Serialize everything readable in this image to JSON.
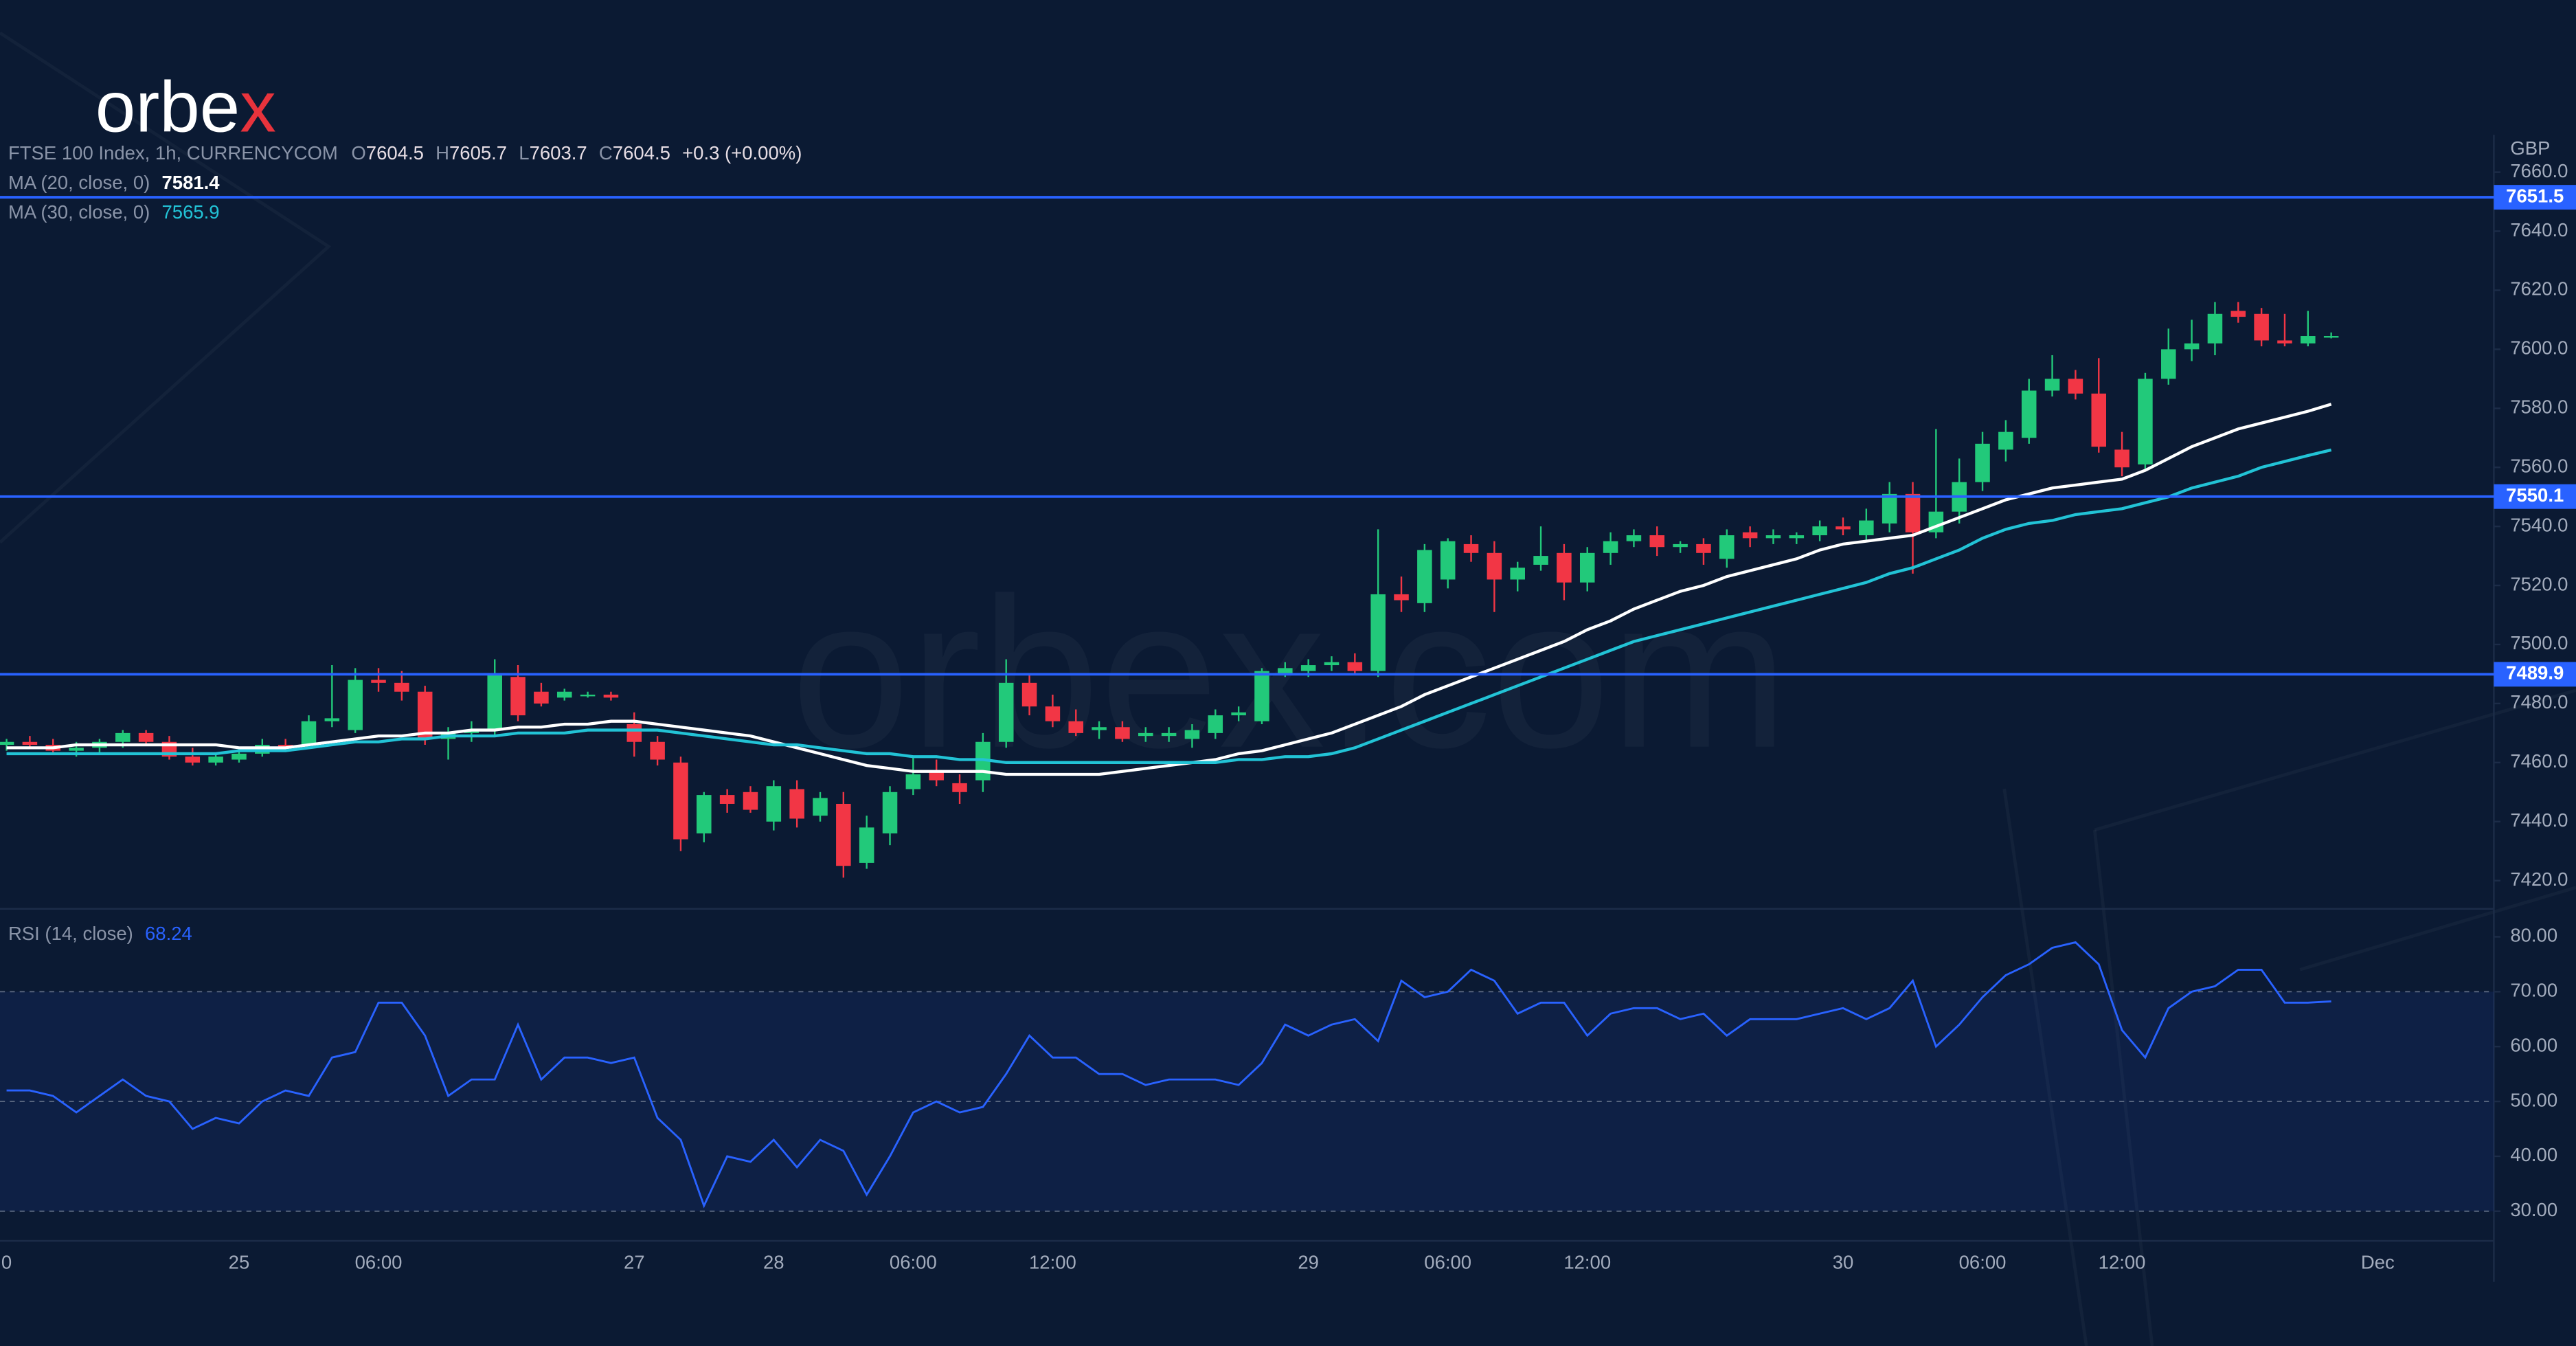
{
  "logo": "orbex",
  "watermark": "orbex.com",
  "chart_data": [
    {
      "type": "candlestick",
      "title": "FTSE 100 Index, 1h, CURRENCYCOM",
      "ohlc_labels": [
        "O",
        "H",
        "L",
        "C"
      ],
      "change": "+0.3 (+0.00%)",
      "unit": "GBP",
      "up_color": "#22c97a",
      "down_color": "#f23645",
      "categories": [
        "0",
        null,
        null,
        null,
        null,
        null,
        null,
        null,
        null,
        null,
        "25",
        null,
        null,
        null,
        null,
        null,
        "06:00",
        null,
        null,
        null,
        null,
        null,
        null,
        null,
        null,
        null,
        null,
        "27",
        null,
        null,
        null,
        null,
        null,
        "28",
        null,
        null,
        null,
        null,
        null,
        "06:00",
        null,
        null,
        null,
        null,
        null,
        "12:00",
        null,
        null,
        null,
        null,
        null,
        null,
        null,
        null,
        null,
        null,
        "29",
        null,
        null,
        null,
        null,
        null,
        "06:00",
        null,
        null,
        null,
        null,
        null,
        "12:00",
        null,
        null,
        null,
        null,
        null,
        null,
        null,
        null,
        null,
        null,
        "30",
        null,
        null,
        null,
        null,
        null,
        "06:00",
        null,
        null,
        null,
        null,
        null,
        "12:00",
        null,
        null,
        null,
        null,
        null,
        null,
        null,
        null,
        null,
        null,
        "Dec"
      ],
      "ohlc": [
        [
          7466,
          7468,
          7464,
          7467
        ],
        [
          7467,
          7469,
          7465,
          7466
        ],
        [
          7466,
          7468,
          7463,
          7464
        ],
        [
          7464,
          7467,
          7462,
          7465
        ],
        [
          7465,
          7468,
          7463,
          7467
        ],
        [
          7467,
          7471,
          7465,
          7470
        ],
        [
          7470,
          7471,
          7466,
          7467
        ],
        [
          7467,
          7469,
          7461,
          7462
        ],
        [
          7462,
          7465,
          7459,
          7460
        ],
        [
          7460,
          7463,
          7459,
          7462
        ],
        [
          7461,
          7464,
          7460,
          7463
        ],
        [
          7463,
          7468,
          7462,
          7466
        ],
        [
          7466,
          7468,
          7464,
          7465
        ],
        [
          7466,
          7476,
          7465,
          7474
        ],
        [
          7474,
          7493,
          7472,
          7475
        ],
        [
          7471,
          7492,
          7470,
          7488
        ],
        [
          7488,
          7492,
          7484,
          7487
        ],
        [
          7487,
          7491,
          7481,
          7484
        ],
        [
          7484,
          7486,
          7466,
          7468
        ],
        [
          7468,
          7472,
          7461,
          7470
        ],
        [
          7470,
          7474,
          7467,
          7471
        ],
        [
          7471,
          7495,
          7469,
          7490
        ],
        [
          7489,
          7493,
          7474,
          7476
        ],
        [
          7484,
          7487,
          7479,
          7480
        ],
        [
          7482,
          7485,
          7481,
          7484
        ],
        [
          7483,
          7484,
          7482,
          7483
        ],
        [
          7483,
          7484,
          7481,
          7482
        ],
        [
          7473,
          7477,
          7462,
          7467
        ],
        [
          7467,
          7469,
          7459,
          7461
        ],
        [
          7460,
          7462,
          7430,
          7434
        ],
        [
          7436,
          7450,
          7433,
          7449
        ],
        [
          7449,
          7451,
          7443,
          7446
        ],
        [
          7450,
          7452,
          7443,
          7444
        ],
        [
          7440,
          7454,
          7437,
          7452
        ],
        [
          7451,
          7454,
          7438,
          7441
        ],
        [
          7442,
          7450,
          7440,
          7448
        ],
        [
          7446,
          7450,
          7421,
          7425
        ],
        [
          7426,
          7442,
          7424,
          7438
        ],
        [
          7436,
          7452,
          7432,
          7450
        ],
        [
          7451,
          7462,
          7449,
          7456
        ],
        [
          7457,
          7461,
          7452,
          7454
        ],
        [
          7453,
          7456,
          7446,
          7450
        ],
        [
          7454,
          7470,
          7450,
          7467
        ],
        [
          7467,
          7495,
          7465,
          7487
        ],
        [
          7487,
          7490,
          7476,
          7479
        ],
        [
          7479,
          7483,
          7472,
          7474
        ],
        [
          7474,
          7478,
          7469,
          7470
        ],
        [
          7471,
          7474,
          7468,
          7472
        ],
        [
          7472,
          7474,
          7467,
          7468
        ],
        [
          7469,
          7472,
          7467,
          7470
        ],
        [
          7469,
          7472,
          7467,
          7470
        ],
        [
          7468,
          7473,
          7465,
          7471
        ],
        [
          7470,
          7478,
          7468,
          7476
        ],
        [
          7476,
          7479,
          7474,
          7477
        ],
        [
          7474,
          7492,
          7473,
          7491
        ],
        [
          7490,
          7494,
          7489,
          7492
        ],
        [
          7491,
          7495,
          7489,
          7493
        ],
        [
          7493,
          7496,
          7491,
          7494
        ],
        [
          7494,
          7497,
          7490,
          7491
        ],
        [
          7491,
          7539,
          7489,
          7517
        ],
        [
          7517,
          7523,
          7511,
          7515
        ],
        [
          7514,
          7534,
          7511,
          7532
        ],
        [
          7522,
          7536,
          7519,
          7535
        ],
        [
          7534,
          7537,
          7528,
          7531
        ],
        [
          7531,
          7535,
          7511,
          7522
        ],
        [
          7522,
          7528,
          7518,
          7526
        ],
        [
          7527,
          7540,
          7525,
          7530
        ],
        [
          7531,
          7534,
          7515,
          7521
        ],
        [
          7521,
          7533,
          7518,
          7531
        ],
        [
          7531,
          7538,
          7527,
          7535
        ],
        [
          7535,
          7539,
          7533,
          7537
        ],
        [
          7537,
          7540,
          7530,
          7533
        ],
        [
          7533,
          7535,
          7531,
          7534
        ],
        [
          7534,
          7536,
          7527,
          7531
        ],
        [
          7529,
          7539,
          7526,
          7537
        ],
        [
          7538,
          7540,
          7533,
          7536
        ],
        [
          7536,
          7539,
          7534,
          7537
        ],
        [
          7536,
          7538,
          7534,
          7537
        ],
        [
          7537,
          7542,
          7535,
          7540
        ],
        [
          7540,
          7543,
          7537,
          7539
        ],
        [
          7537,
          7546,
          7535,
          7542
        ],
        [
          7541,
          7555,
          7538,
          7551
        ],
        [
          7551,
          7555,
          7524,
          7538
        ],
        [
          7538,
          7573,
          7536,
          7545
        ],
        [
          7545,
          7563,
          7541,
          7555
        ],
        [
          7555,
          7572,
          7552,
          7568
        ],
        [
          7566,
          7576,
          7562,
          7572
        ],
        [
          7570,
          7590,
          7568,
          7586
        ],
        [
          7586,
          7598,
          7584,
          7590
        ],
        [
          7590,
          7593,
          7583,
          7585
        ],
        [
          7585,
          7597,
          7565,
          7567
        ],
        [
          7566,
          7572,
          7557,
          7560
        ],
        [
          7561,
          7592,
          7559,
          7590
        ],
        [
          7590,
          7607,
          7588,
          7600
        ],
        [
          7600,
          7610,
          7596,
          7602
        ],
        [
          7602,
          7616,
          7598,
          7612
        ],
        [
          7613,
          7616,
          7609,
          7611
        ],
        [
          7612,
          7614,
          7601,
          7603
        ],
        [
          7603,
          7612,
          7601,
          7602
        ],
        [
          7602,
          7613,
          7601,
          7604.5
        ],
        [
          7604.5,
          7605.7,
          7603.7,
          7604.5
        ],
        null,
        null
      ],
      "series": [
        {
          "name": "MA (20, close, 0)",
          "color": "#ffffff",
          "values": [
            7465,
            7465,
            7465,
            7466,
            7466,
            7466,
            7466,
            7466,
            7466,
            7466,
            7465,
            7465,
            7465,
            7466,
            7467,
            7468,
            7469,
            7469,
            7470,
            7470,
            7471,
            7471,
            7472,
            7472,
            7473,
            7473,
            7474,
            7474,
            7473,
            7472,
            7471,
            7470,
            7469,
            7467,
            7465,
            7463,
            7461,
            7459,
            7458,
            7457,
            7457,
            7457,
            7457,
            7456,
            7456,
            7456,
            7456,
            7456,
            7457,
            7458,
            7459,
            7460,
            7461,
            7463,
            7464,
            7466,
            7468,
            7470,
            7473,
            7476,
            7479,
            7483,
            7486,
            7489,
            7492,
            7495,
            7498,
            7501,
            7505,
            7508,
            7512,
            7515,
            7518,
            7520,
            7523,
            7525,
            7527,
            7529,
            7532,
            7534,
            7535,
            7536,
            7537,
            7540,
            7543,
            7546,
            7549,
            7551,
            7553,
            7554,
            7555,
            7556,
            7559,
            7563,
            7567,
            7570,
            7573,
            7575,
            7577,
            7579,
            7581.4,
            null,
            null
          ]
        },
        {
          "name": "MA (30, close, 0)",
          "color": "#22c3d6",
          "values": [
            7463,
            7463,
            7463,
            7463,
            7463,
            7463,
            7463,
            7463,
            7463,
            7463,
            7464,
            7464,
            7464,
            7465,
            7466,
            7467,
            7467,
            7468,
            7468,
            7469,
            7469,
            7469,
            7470,
            7470,
            7470,
            7471,
            7471,
            7471,
            7471,
            7470,
            7469,
            7468,
            7467,
            7466,
            7466,
            7465,
            7464,
            7463,
            7463,
            7462,
            7462,
            7461,
            7461,
            7460,
            7460,
            7460,
            7460,
            7460,
            7460,
            7460,
            7460,
            7460,
            7460,
            7461,
            7461,
            7462,
            7462,
            7463,
            7465,
            7468,
            7471,
            7474,
            7477,
            7480,
            7483,
            7486,
            7489,
            7492,
            7495,
            7498,
            7501,
            7503,
            7505,
            7507,
            7509,
            7511,
            7513,
            7515,
            7517,
            7519,
            7521,
            7524,
            7526,
            7529,
            7532,
            7536,
            7539,
            7541,
            7542,
            7544,
            7545,
            7546,
            7548,
            7550,
            7553,
            7555,
            7557,
            7560,
            7562,
            7564,
            7565.9,
            null,
            null
          ]
        }
      ],
      "levels": {
        "color": "#2962ff",
        "values": [
          7651.5,
          7550.1,
          7489.9
        ]
      },
      "ylim": [
        7411,
        7671
      ],
      "yticks": [
        {
          "value": 7420,
          "label": "7420.0"
        },
        {
          "value": 7440,
          "label": "7440.0"
        },
        {
          "value": 7460,
          "label": "7460.0"
        },
        {
          "value": 7480,
          "label": "7480.0"
        },
        {
          "value": 7500,
          "label": "7500.0"
        },
        {
          "value": 7520,
          "label": "7520.0"
        },
        {
          "value": 7540,
          "label": "7540.0"
        },
        {
          "value": 7560,
          "label": "7560.0"
        },
        {
          "value": 7580,
          "label": "7580.0"
        },
        {
          "value": 7600,
          "label": "7600.0"
        },
        {
          "value": 7620,
          "label": "7620.0"
        },
        {
          "value": 7640,
          "label": "7640.0"
        },
        {
          "value": 7660,
          "label": "7660.0"
        }
      ]
    },
    {
      "type": "line",
      "series": [
        {
          "name": "RSI (14, close)",
          "color": "#2962ff",
          "values": [
            52,
            52,
            51,
            48,
            51,
            54,
            51,
            50,
            45,
            47,
            46,
            50,
            52,
            51,
            58,
            59,
            68,
            68,
            62,
            51,
            54,
            54,
            64,
            54,
            58,
            58,
            57,
            58,
            47,
            43,
            31,
            40,
            39,
            43,
            38,
            43,
            41,
            33,
            40,
            48,
            50,
            48,
            49,
            55,
            62,
            58,
            58,
            55,
            55,
            53,
            54,
            54,
            54,
            53,
            57,
            64,
            62,
            64,
            65,
            61,
            72,
            69,
            70,
            74,
            72,
            66,
            68,
            68,
            62,
            66,
            67,
            67,
            65,
            66,
            62,
            65,
            65,
            65,
            66,
            67,
            65,
            67,
            72,
            60,
            64,
            69,
            73,
            75,
            78,
            79,
            75,
            63,
            58,
            67,
            70,
            71,
            74,
            74,
            68,
            68,
            68.24,
            null,
            null
          ]
        }
      ],
      "band": [
        30,
        70
      ],
      "dashed": [
        30,
        50,
        70
      ],
      "ylim": [
        24.6,
        85.1
      ],
      "yticks": [
        {
          "value": 30,
          "label": "30.00"
        },
        {
          "value": 40,
          "label": "40.00"
        },
        {
          "value": 50,
          "label": "50.00"
        },
        {
          "value": 60,
          "label": "60.00"
        },
        {
          "value": 70,
          "label": "70.00"
        },
        {
          "value": 80,
          "label": "80.00"
        }
      ]
    }
  ]
}
